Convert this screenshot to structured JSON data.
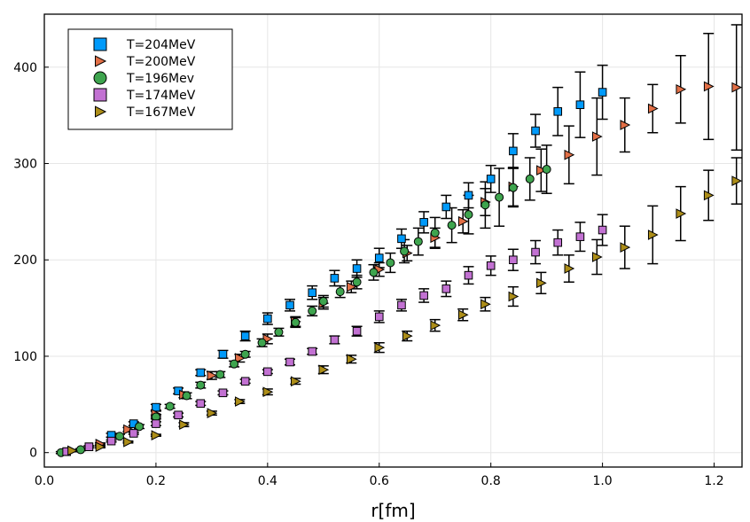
{
  "chart_data": {
    "type": "scatter",
    "title": "",
    "xlabel": "r[fm]",
    "ylabel": "",
    "xlim": [
      0.0,
      1.25
    ],
    "ylim": [
      -15,
      455
    ],
    "xticks": [
      0.0,
      0.2,
      0.4,
      0.6,
      0.8,
      1.0,
      1.2
    ],
    "xtick_labels": [
      "0.0",
      "0.2",
      "0.4",
      "0.6",
      "0.8",
      "1.0",
      "1.2"
    ],
    "yticks": [
      0,
      100,
      200,
      300,
      400
    ],
    "ytick_labels": [
      "0",
      "100",
      "200",
      "300",
      "400"
    ],
    "grid": true,
    "legend_position": "top-left",
    "series": [
      {
        "name": "T=204MeV",
        "marker": "square",
        "color": "#009AFA",
        "points": [
          {
            "x": 0.04,
            "y": 1,
            "err": 1
          },
          {
            "x": 0.08,
            "y": 6,
            "err": 1
          },
          {
            "x": 0.12,
            "y": 18,
            "err": 2
          },
          {
            "x": 0.16,
            "y": 30,
            "err": 2
          },
          {
            "x": 0.2,
            "y": 47,
            "err": 3
          },
          {
            "x": 0.24,
            "y": 64,
            "err": 3
          },
          {
            "x": 0.28,
            "y": 83,
            "err": 3
          },
          {
            "x": 0.32,
            "y": 102,
            "err": 4
          },
          {
            "x": 0.36,
            "y": 121,
            "err": 5
          },
          {
            "x": 0.4,
            "y": 139,
            "err": 6
          },
          {
            "x": 0.44,
            "y": 153,
            "err": 6
          },
          {
            "x": 0.48,
            "y": 166,
            "err": 7
          },
          {
            "x": 0.52,
            "y": 181,
            "err": 8
          },
          {
            "x": 0.56,
            "y": 191,
            "err": 9
          },
          {
            "x": 0.6,
            "y": 202,
            "err": 10
          },
          {
            "x": 0.64,
            "y": 222,
            "err": 10
          },
          {
            "x": 0.68,
            "y": 239,
            "err": 11
          },
          {
            "x": 0.72,
            "y": 255,
            "err": 12
          },
          {
            "x": 0.76,
            "y": 267,
            "err": 13
          },
          {
            "x": 0.8,
            "y": 284,
            "err": 14
          },
          {
            "x": 0.84,
            "y": 313,
            "err": 18
          },
          {
            "x": 0.88,
            "y": 334,
            "err": 17
          },
          {
            "x": 0.92,
            "y": 354,
            "err": 25
          },
          {
            "x": 0.96,
            "y": 361,
            "err": 34
          },
          {
            "x": 1.0,
            "y": 374,
            "err": 28
          }
        ]
      },
      {
        "name": "T=200MeV",
        "marker": "triangle-right",
        "color": "#E26F46",
        "points": [
          {
            "x": 0.05,
            "y": 2,
            "err": 1
          },
          {
            "x": 0.1,
            "y": 9,
            "err": 1
          },
          {
            "x": 0.15,
            "y": 24,
            "err": 2
          },
          {
            "x": 0.2,
            "y": 40,
            "err": 3
          },
          {
            "x": 0.25,
            "y": 60,
            "err": 3
          },
          {
            "x": 0.3,
            "y": 80,
            "err": 4
          },
          {
            "x": 0.35,
            "y": 98,
            "err": 4
          },
          {
            "x": 0.4,
            "y": 118,
            "err": 5
          },
          {
            "x": 0.45,
            "y": 136,
            "err": 5
          },
          {
            "x": 0.5,
            "y": 155,
            "err": 6
          },
          {
            "x": 0.55,
            "y": 172,
            "err": 6
          },
          {
            "x": 0.6,
            "y": 190,
            "err": 7
          },
          {
            "x": 0.65,
            "y": 207,
            "err": 8
          },
          {
            "x": 0.7,
            "y": 223,
            "err": 10
          },
          {
            "x": 0.75,
            "y": 240,
            "err": 12
          },
          {
            "x": 0.79,
            "y": 260,
            "err": 14
          },
          {
            "x": 0.84,
            "y": 276,
            "err": 20
          },
          {
            "x": 0.89,
            "y": 293,
            "err": 22
          },
          {
            "x": 0.94,
            "y": 309,
            "err": 30
          },
          {
            "x": 0.99,
            "y": 328,
            "err": 40
          },
          {
            "x": 1.04,
            "y": 340,
            "err": 28
          },
          {
            "x": 1.09,
            "y": 357,
            "err": 25
          },
          {
            "x": 1.14,
            "y": 377,
            "err": 35
          },
          {
            "x": 1.19,
            "y": 380,
            "err": 55
          },
          {
            "x": 1.24,
            "y": 379,
            "err": 65
          }
        ]
      },
      {
        "name": "T=196Mev",
        "marker": "circle",
        "color": "#3EA44E",
        "points": [
          {
            "x": 0.03,
            "y": 0,
            "err": 1
          },
          {
            "x": 0.065,
            "y": 3,
            "err": 1
          },
          {
            "x": 0.135,
            "y": 17,
            "err": 2
          },
          {
            "x": 0.17,
            "y": 27,
            "err": 2
          },
          {
            "x": 0.2,
            "y": 37,
            "err": 2
          },
          {
            "x": 0.225,
            "y": 48,
            "err": 2
          },
          {
            "x": 0.255,
            "y": 59,
            "err": 3
          },
          {
            "x": 0.28,
            "y": 70,
            "err": 3
          },
          {
            "x": 0.315,
            "y": 81,
            "err": 3
          },
          {
            "x": 0.34,
            "y": 92,
            "err": 3
          },
          {
            "x": 0.36,
            "y": 102,
            "err": 3
          },
          {
            "x": 0.39,
            "y": 114,
            "err": 4
          },
          {
            "x": 0.42,
            "y": 125,
            "err": 4
          },
          {
            "x": 0.45,
            "y": 135,
            "err": 5
          },
          {
            "x": 0.48,
            "y": 147,
            "err": 5
          },
          {
            "x": 0.5,
            "y": 157,
            "err": 6
          },
          {
            "x": 0.53,
            "y": 167,
            "err": 6
          },
          {
            "x": 0.56,
            "y": 177,
            "err": 7
          },
          {
            "x": 0.59,
            "y": 187,
            "err": 8
          },
          {
            "x": 0.62,
            "y": 197,
            "err": 10
          },
          {
            "x": 0.645,
            "y": 209,
            "err": 12
          },
          {
            "x": 0.67,
            "y": 219,
            "err": 14
          },
          {
            "x": 0.7,
            "y": 228,
            "err": 16
          },
          {
            "x": 0.73,
            "y": 236,
            "err": 18
          },
          {
            "x": 0.76,
            "y": 247,
            "err": 20
          },
          {
            "x": 0.79,
            "y": 257,
            "err": 24
          },
          {
            "x": 0.815,
            "y": 265,
            "err": 30
          },
          {
            "x": 0.84,
            "y": 275,
            "err": 20
          },
          {
            "x": 0.87,
            "y": 284,
            "err": 22
          },
          {
            "x": 0.9,
            "y": 294,
            "err": 25
          }
        ]
      },
      {
        "name": "T=174MeV",
        "marker": "square",
        "color": "#C271D2",
        "points": [
          {
            "x": 0.04,
            "y": 1,
            "err": 1
          },
          {
            "x": 0.08,
            "y": 6,
            "err": 1
          },
          {
            "x": 0.12,
            "y": 12,
            "err": 1
          },
          {
            "x": 0.16,
            "y": 20,
            "err": 1
          },
          {
            "x": 0.2,
            "y": 30,
            "err": 2
          },
          {
            "x": 0.24,
            "y": 39,
            "err": 2
          },
          {
            "x": 0.28,
            "y": 51,
            "err": 2
          },
          {
            "x": 0.32,
            "y": 62,
            "err": 2
          },
          {
            "x": 0.36,
            "y": 74,
            "err": 2
          },
          {
            "x": 0.4,
            "y": 84,
            "err": 2
          },
          {
            "x": 0.44,
            "y": 94,
            "err": 3
          },
          {
            "x": 0.48,
            "y": 105,
            "err": 3
          },
          {
            "x": 0.52,
            "y": 117,
            "err": 4
          },
          {
            "x": 0.56,
            "y": 126,
            "err": 5
          },
          {
            "x": 0.6,
            "y": 141,
            "err": 6
          },
          {
            "x": 0.64,
            "y": 153,
            "err": 6
          },
          {
            "x": 0.68,
            "y": 163,
            "err": 7
          },
          {
            "x": 0.72,
            "y": 170,
            "err": 8
          },
          {
            "x": 0.76,
            "y": 184,
            "err": 9
          },
          {
            "x": 0.8,
            "y": 194,
            "err": 10
          },
          {
            "x": 0.84,
            "y": 200,
            "err": 11
          },
          {
            "x": 0.88,
            "y": 208,
            "err": 12
          },
          {
            "x": 0.92,
            "y": 218,
            "err": 13
          },
          {
            "x": 0.96,
            "y": 224,
            "err": 15
          },
          {
            "x": 1.0,
            "y": 231,
            "err": 16
          }
        ]
      },
      {
        "name": "T=167MeV",
        "marker": "triangle-right",
        "color": "#AC8D18",
        "points": [
          {
            "x": 0.05,
            "y": 2,
            "err": 1
          },
          {
            "x": 0.1,
            "y": 6,
            "err": 1
          },
          {
            "x": 0.15,
            "y": 11,
            "err": 1
          },
          {
            "x": 0.2,
            "y": 18,
            "err": 1
          },
          {
            "x": 0.25,
            "y": 29,
            "err": 2
          },
          {
            "x": 0.3,
            "y": 41,
            "err": 2
          },
          {
            "x": 0.35,
            "y": 53,
            "err": 2
          },
          {
            "x": 0.4,
            "y": 63,
            "err": 3
          },
          {
            "x": 0.45,
            "y": 74,
            "err": 3
          },
          {
            "x": 0.5,
            "y": 86,
            "err": 4
          },
          {
            "x": 0.55,
            "y": 97,
            "err": 4
          },
          {
            "x": 0.6,
            "y": 109,
            "err": 5
          },
          {
            "x": 0.65,
            "y": 121,
            "err": 5
          },
          {
            "x": 0.7,
            "y": 132,
            "err": 6
          },
          {
            "x": 0.75,
            "y": 143,
            "err": 6
          },
          {
            "x": 0.79,
            "y": 154,
            "err": 7
          },
          {
            "x": 0.84,
            "y": 162,
            "err": 10
          },
          {
            "x": 0.89,
            "y": 176,
            "err": 11
          },
          {
            "x": 0.94,
            "y": 191,
            "err": 14
          },
          {
            "x": 0.99,
            "y": 203,
            "err": 18
          },
          {
            "x": 1.04,
            "y": 213,
            "err": 22
          },
          {
            "x": 1.09,
            "y": 226,
            "err": 30
          },
          {
            "x": 1.14,
            "y": 248,
            "err": 28
          },
          {
            "x": 1.19,
            "y": 267,
            "err": 26
          },
          {
            "x": 1.24,
            "y": 282,
            "err": 24
          }
        ]
      }
    ]
  }
}
